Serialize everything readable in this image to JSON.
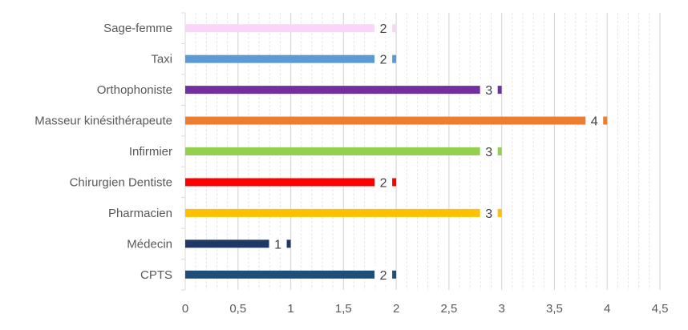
{
  "chart_data": {
    "type": "bar",
    "orientation": "horizontal",
    "categories": [
      "CPTS",
      "Médecin",
      "Pharmacien",
      "Chirurgien Dentiste",
      "Infirmier",
      "Masseur kinésithérapeute",
      "Orthophoniste",
      "Taxi",
      "Sage-femme"
    ],
    "values": [
      2,
      1,
      3,
      2,
      3,
      4,
      3,
      2,
      2
    ],
    "colors": [
      "#1F4E79",
      "#203864",
      "#FFC000",
      "#FF0000",
      "#92D050",
      "#ED7D31",
      "#7030A0",
      "#5B9BD5",
      "#F9D6F7"
    ],
    "xlim": [
      0,
      4.5
    ],
    "xticks": [
      "0",
      "0,5",
      "1",
      "1,5",
      "2",
      "2,5",
      "3",
      "3,5",
      "4",
      "4,5"
    ],
    "grid": {
      "major": true,
      "minor": true
    },
    "data_labels": true,
    "legend": "none",
    "title": "",
    "xlabel": "",
    "ylabel": ""
  }
}
